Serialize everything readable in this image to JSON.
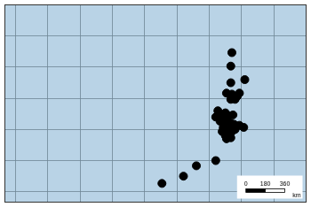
{
  "chart_data": {
    "type": "scatter",
    "x": [
      30.1,
      30.0,
      31.3,
      30.0,
      29.6,
      30.1,
      30.6,
      30.4,
      30.0,
      30.8,
      28.8,
      29.2,
      29.5,
      29.8,
      30.2,
      29.6,
      30.0,
      30.3,
      29.3,
      29.8,
      30.1,
      29.5,
      30.0,
      30.4,
      30.8,
      29.0,
      28.6,
      29.2,
      29.6,
      31.2,
      28.6,
      26.8,
      25.6,
      23.6
    ],
    "values": [
      -21.6,
      -22.9,
      -24.2,
      -24.5,
      -25.5,
      -25.6,
      -25.8,
      -26.1,
      -26.1,
      -25.5,
      -27.2,
      -27.6,
      -27.4,
      -27.7,
      -27.6,
      -28.2,
      -28.4,
      -28.5,
      -28.8,
      -29.0,
      -29.2,
      -29.6,
      -29.8,
      -29.0,
      -28.6,
      -28.2,
      -27.8,
      -29.2,
      -29.9,
      -28.8,
      -32.0,
      -32.5,
      -33.5,
      -34.2
    ],
    "color": "#000000",
    "marker": "circle",
    "xlim": [
      9,
      37
    ],
    "ylim": [
      -36,
      -17
    ],
    "xticks": [
      10,
      13,
      16,
      19,
      22,
      25,
      28,
      31,
      34,
      37
    ],
    "yticks": [
      -35,
      -32,
      -29,
      -26,
      -23,
      -20,
      -17
    ],
    "grid": true,
    "tick_labels": false,
    "scale_bar": {
      "ticks": [
        0,
        180,
        360
      ],
      "unit": "km"
    }
  }
}
